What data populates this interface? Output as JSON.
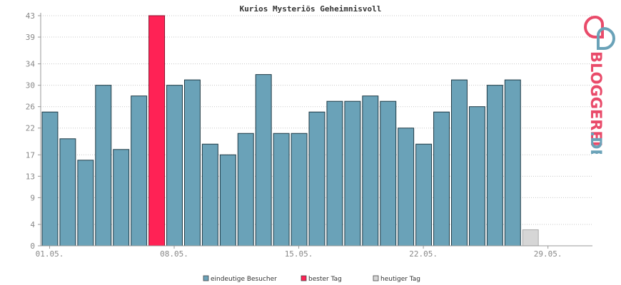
{
  "chart_data": {
    "type": "bar",
    "title": "Kurios Mysteriös Geheimnisvoll",
    "xlabel": "",
    "ylabel": "",
    "ylim": [
      0,
      43
    ],
    "yticks": [
      0,
      4,
      9,
      13,
      17,
      22,
      26,
      30,
      34,
      39,
      43
    ],
    "xtick_labels": [
      "01.05.",
      "08.05.",
      "15.05.",
      "22.05.",
      "29.05."
    ],
    "xtick_indices": [
      1,
      8,
      15,
      22,
      29
    ],
    "days": 31,
    "grid": true,
    "legend_position": "bottom-center",
    "categories": [
      "01.05.",
      "02.05.",
      "03.05.",
      "04.05.",
      "05.05.",
      "06.05.",
      "07.05.",
      "08.05.",
      "09.05.",
      "10.05.",
      "11.05.",
      "12.05.",
      "13.05.",
      "14.05.",
      "15.05.",
      "16.05.",
      "17.05.",
      "18.05.",
      "19.05.",
      "20.05.",
      "21.05.",
      "22.05.",
      "23.05.",
      "24.05.",
      "25.05.",
      "26.05.",
      "27.05.",
      "28.05.",
      "29.05.",
      "30.05.",
      "31.05."
    ],
    "values": [
      25,
      20,
      16,
      30,
      18,
      28,
      43,
      30,
      31,
      19,
      17,
      21,
      32,
      21,
      21,
      25,
      27,
      27,
      28,
      27,
      22,
      19,
      25,
      31,
      26,
      30,
      31,
      3,
      null,
      null,
      null
    ],
    "best_day_index": 6,
    "today_index": 27,
    "series": [
      {
        "name": "eindeutige Besucher",
        "color": "#6aa2b8"
      },
      {
        "name": "bester Tag",
        "color": "#ff2255"
      },
      {
        "name": "heutiger Tag",
        "color": "#d6d6d6"
      }
    ]
  },
  "logo": {
    "text_colored": "BLOGGEREI",
    "text_suffix": ".DE",
    "color_main": "#e94b6a",
    "color_suffix": "#6aa2b8"
  }
}
